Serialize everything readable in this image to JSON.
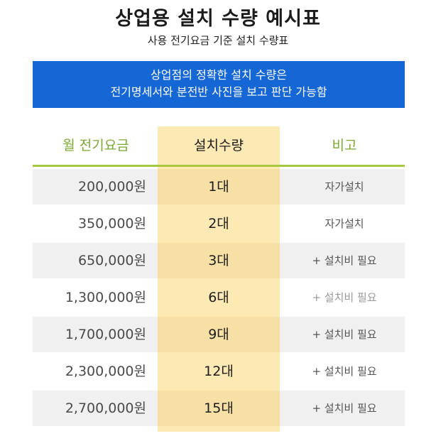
{
  "title": "상업용 설치 수량 예시표",
  "subtitle": "사용 전기요금 기준 설치 수량표",
  "banner": {
    "line1": "상업점의 정확한 설치 수량은",
    "line2": "전기명세서와 분전반 사진을 보고 판단 가능함"
  },
  "table": {
    "headers": {
      "fee": "월 전기요금",
      "qty": "설치수량",
      "note": "비고"
    },
    "rows": [
      {
        "fee": "200,000원",
        "qty": "1대",
        "note": "자가설치"
      },
      {
        "fee": "350,000원",
        "qty": "2대",
        "note": "자가설치"
      },
      {
        "fee": "650,000원",
        "qty": "3대",
        "note": "+ 설치비 필요"
      },
      {
        "fee": "1,300,000원",
        "qty": "6대",
        "note": "+ 설치비 필요"
      },
      {
        "fee": "1,700,000원",
        "qty": "9대",
        "note": "+ 설치비 필요"
      },
      {
        "fee": "2,300,000원",
        "qty": "12대",
        "note": "+ 설치비 필요"
      },
      {
        "fee": "2,700,000원",
        "qty": "15대",
        "note": "+ 설치비 필요"
      }
    ]
  },
  "colors": {
    "banner_bg": "#1467d4",
    "header_green": "#7aaa2c",
    "highlight": "#fde9b4",
    "row_shade": "#f0f0f0"
  }
}
